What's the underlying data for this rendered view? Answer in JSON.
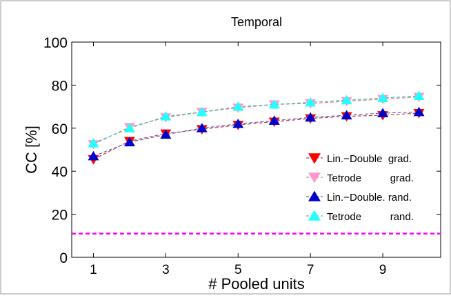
{
  "chart_data": {
    "type": "line",
    "title": "Temporal",
    "xlabel": "# Pooled units",
    "ylabel": "CC [%]",
    "xlim": [
      0.4,
      10.6
    ],
    "ylim": [
      0,
      100
    ],
    "xticks": [
      1,
      3,
      5,
      7,
      9
    ],
    "yticks": [
      0,
      20,
      40,
      60,
      80,
      100
    ],
    "x": [
      1,
      2,
      3,
      4,
      5,
      6,
      7,
      8,
      9,
      10
    ],
    "grid": false,
    "legend_position": "right",
    "series": [
      {
        "name": "Lin.−Double  grad.",
        "values": [
          45.5,
          54,
          57.5,
          59.5,
          61.5,
          63,
          64.5,
          65.5,
          66,
          67
        ],
        "color": "#ff0000",
        "line_color": "#c04040",
        "marker": "triangle-down"
      },
      {
        "name": "Tetrode          grad.",
        "values": [
          52.5,
          60.5,
          65,
          67.5,
          69.5,
          71,
          71.5,
          72.5,
          73.5,
          74.5
        ],
        "color": "#ff99cc",
        "line_color": "#e08080",
        "marker": "triangle-down"
      },
      {
        "name": "Lin.−Double. rand.",
        "values": [
          47,
          53.5,
          57,
          60,
          62,
          63.5,
          65,
          66,
          67,
          67.5
        ],
        "color": "#0000cc",
        "line_color": "#6060c0",
        "marker": "triangle-up"
      },
      {
        "name": "Tetrode          rand.",
        "values": [
          53,
          60,
          65.5,
          67.5,
          70,
          71,
          72,
          73,
          74,
          75
        ],
        "color": "#22ffff",
        "line_color": "#40c0c0",
        "marker": "triangle-up"
      }
    ],
    "reference_line": {
      "value": 11,
      "color": "#ff00ff",
      "style": "dashed"
    }
  }
}
